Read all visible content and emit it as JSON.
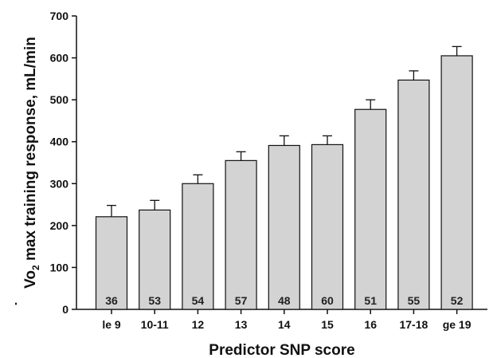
{
  "chart_data": {
    "type": "bar",
    "title": "",
    "xlabel": "Predictor SNP score",
    "ylabel": {
      "dot": "˙",
      "v": "V",
      "o2": "o",
      "sub": "2",
      "rest": " max training response, mL/min"
    },
    "ylim": [
      0,
      700
    ],
    "yticks": [
      "0",
      "100",
      "200",
      "300",
      "400",
      "500",
      "600",
      "700"
    ],
    "grid": false,
    "categories": [
      "le 9",
      "10-11",
      "12",
      "13",
      "14",
      "15",
      "16",
      "17-18",
      "ge 19"
    ],
    "values": [
      221,
      237,
      300,
      355,
      391,
      393,
      477,
      547,
      605
    ],
    "error_upper": [
      27,
      23,
      21,
      21,
      23,
      21,
      23,
      22,
      22
    ],
    "sample_sizes": [
      "36",
      "53",
      "54",
      "57",
      "48",
      "60",
      "51",
      "55",
      "52"
    ],
    "bar_color": "#d3d3d3",
    "bar_edge_color": "#111111"
  }
}
